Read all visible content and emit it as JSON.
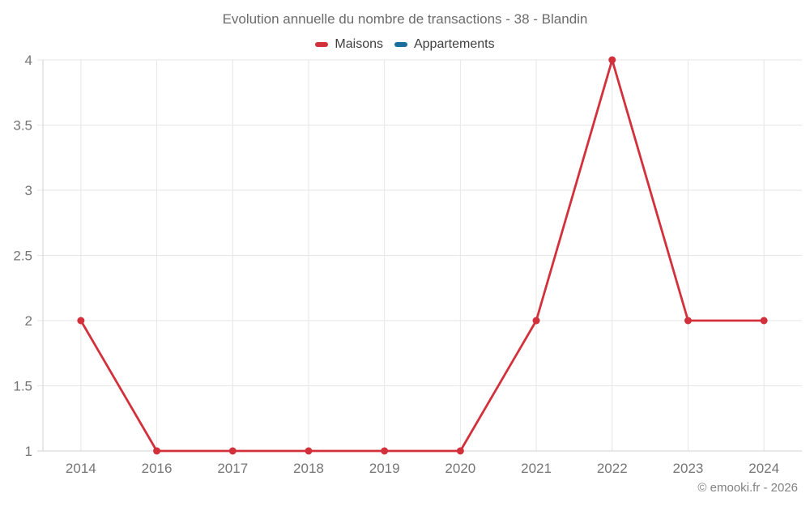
{
  "title": "Evolution annuelle du nombre de transactions - 38 - Blandin",
  "credit": "© emooki.fr - 2026",
  "chart_data": {
    "type": "line",
    "title": "Evolution annuelle du nombre de transactions - 38 - Blandin",
    "categories": [
      "2014",
      "2016",
      "2017",
      "2018",
      "2019",
      "2020",
      "2021",
      "2022",
      "2023",
      "2024"
    ],
    "series": [
      {
        "name": "Maisons",
        "color": "#d2313c",
        "values": [
          2,
          1,
          1,
          1,
          1,
          1,
          2,
          4,
          2,
          2
        ]
      },
      {
        "name": "Appartements",
        "color": "#1c6e9c",
        "values": []
      }
    ],
    "xlabel": "",
    "ylabel": "",
    "ylim": [
      1,
      4
    ],
    "yticks": [
      1,
      1.5,
      2,
      2.5,
      3,
      3.5,
      4
    ],
    "grid": true,
    "legend_position": "top",
    "marker_radius": 4.5,
    "line_width": 2.8
  },
  "colors": {
    "grid": "#e6e6e6",
    "axis": "#d2d2d2",
    "tick_label": "#757575",
    "title_text": "#6b6b6b",
    "legend_text": "#3f3f3f",
    "credit_text": "#828282",
    "background": "#ffffff"
  }
}
